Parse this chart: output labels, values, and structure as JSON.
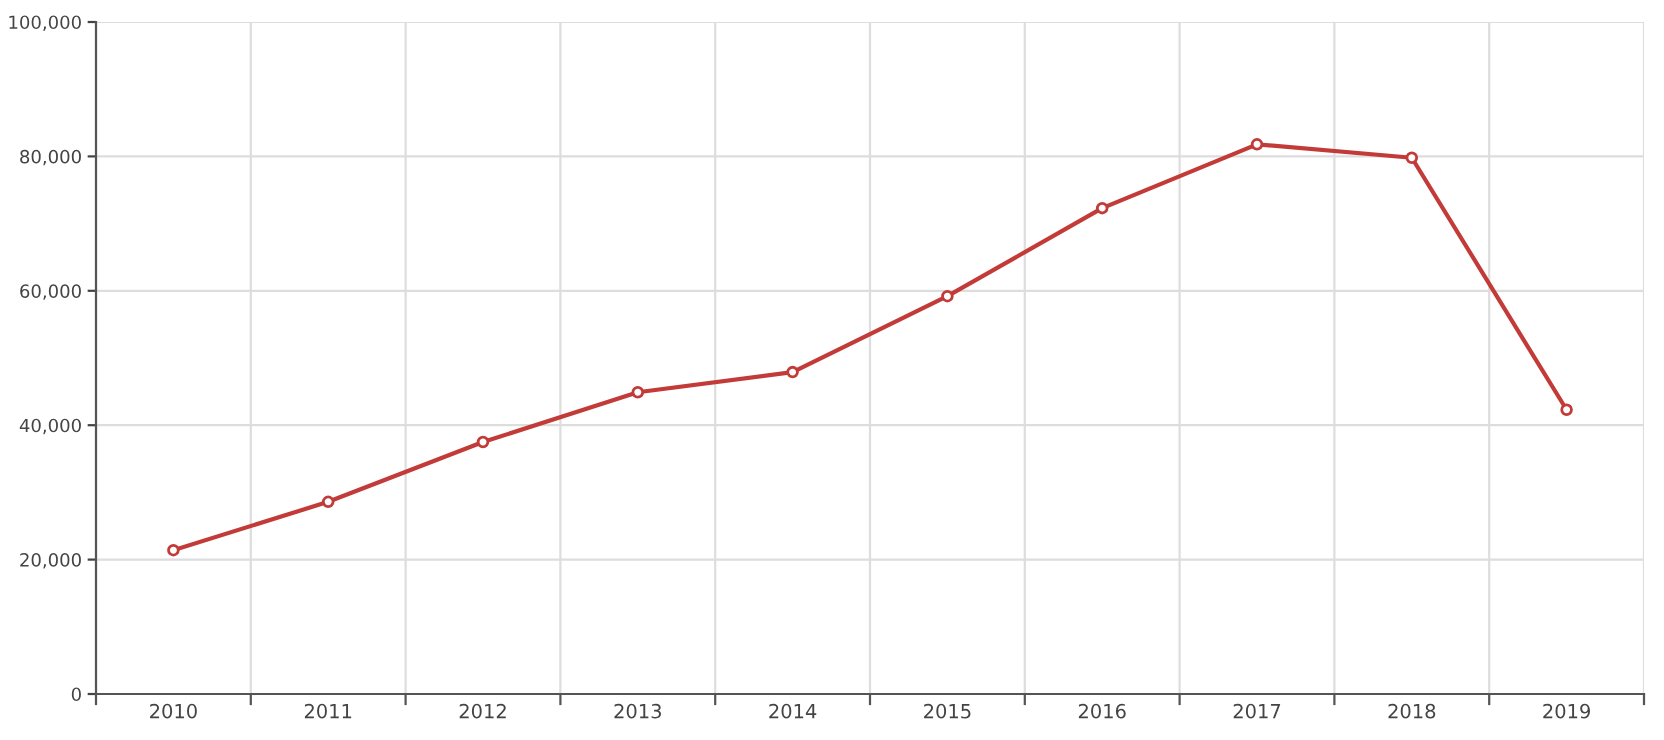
{
  "chart_data": {
    "type": "line",
    "categories": [
      "2010",
      "2011",
      "2012",
      "2013",
      "2014",
      "2015",
      "2016",
      "2017",
      "2018",
      "2019"
    ],
    "series": [
      {
        "color": "#c23b38",
        "values": [
          21400,
          28600,
          37500,
          44900,
          47900,
          59200,
          72300,
          81800,
          79800,
          42300
        ]
      }
    ],
    "ylim": [
      0,
      100000
    ],
    "yticks": [
      {
        "value": 0,
        "label": "0"
      },
      {
        "value": 20000,
        "label": "20,000"
      },
      {
        "value": 40000,
        "label": "40,000"
      },
      {
        "value": 60000,
        "label": "60,000"
      },
      {
        "value": 80000,
        "label": "80,000"
      },
      {
        "value": 100000,
        "label": "100,000"
      }
    ],
    "grid": true,
    "marker": "circle",
    "line_style": "solid"
  }
}
